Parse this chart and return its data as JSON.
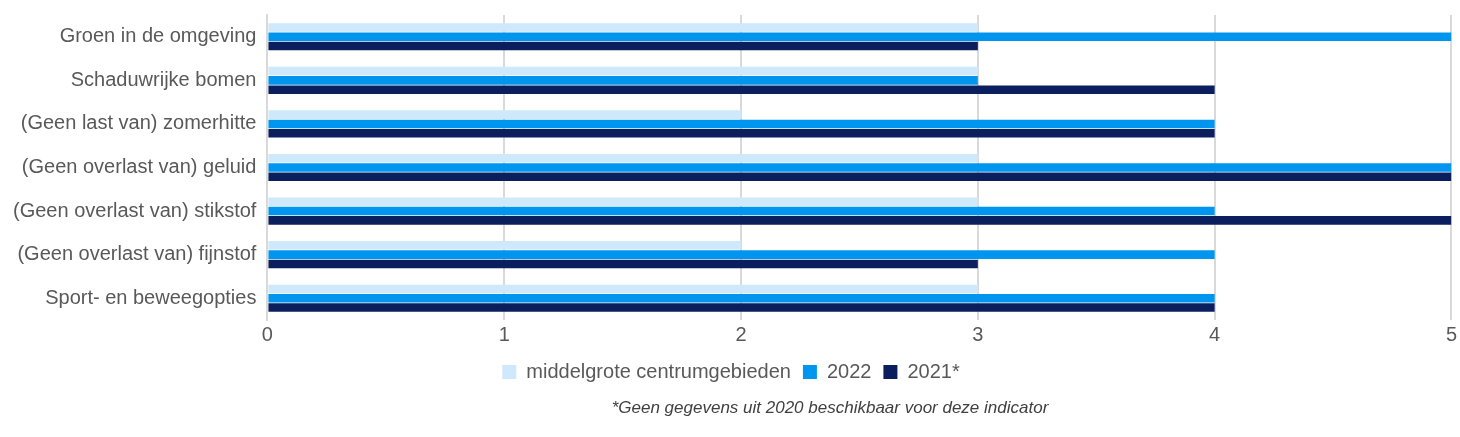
{
  "chart_data": {
    "type": "bar",
    "orientation": "horizontal",
    "categories": [
      "Groen in de omgeving",
      "Schaduwrijke bomen",
      "(Geen last van) zomerhitte",
      "(Geen overlast van) geluid",
      "(Geen overlast van) stikstof",
      "(Geen overlast van) fijnstof",
      "Sport- en beweegopties"
    ],
    "series": [
      {
        "name": "middelgrote centrumgebieden",
        "color": "#cde9fb",
        "values": [
          3,
          3,
          2,
          3,
          3,
          2,
          3
        ]
      },
      {
        "name": "2022",
        "color": "#0096f0",
        "values": [
          5,
          3,
          4,
          5,
          4,
          4,
          4
        ]
      },
      {
        "name": "2021*",
        "color": "#0b1f5e",
        "values": [
          3,
          4,
          4,
          5,
          5,
          3,
          4
        ]
      }
    ],
    "xlim": [
      0,
      5
    ],
    "xticks": [
      0,
      1,
      2,
      3,
      4,
      5
    ],
    "grid": "x",
    "legend": "bottom",
    "annotations": [
      "*Geen gegevens uit 2020 beschikbaar voor deze indicator"
    ]
  }
}
